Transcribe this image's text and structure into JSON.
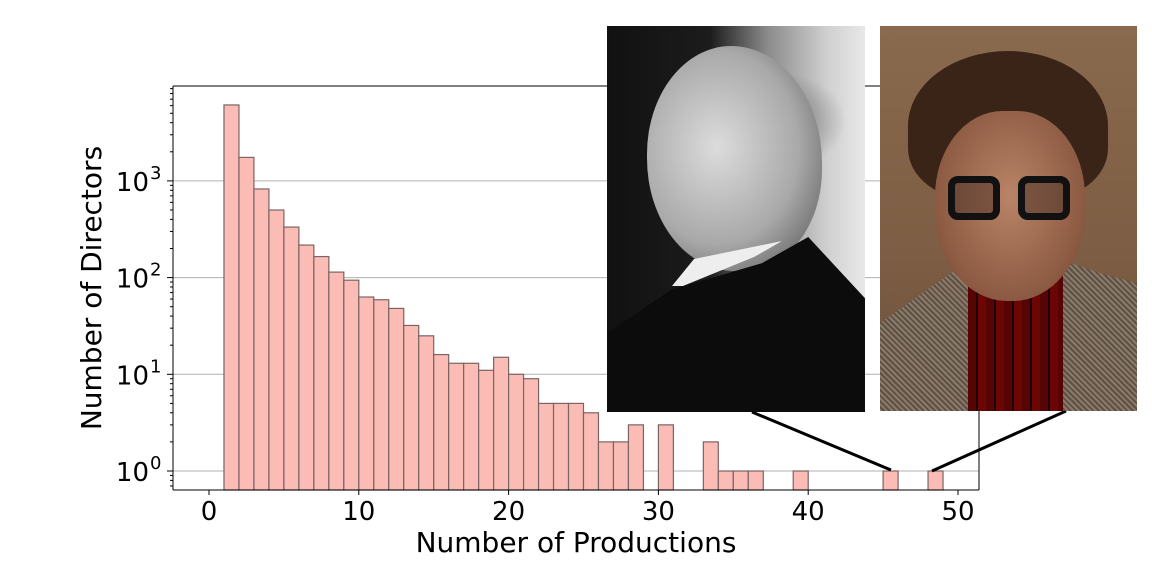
{
  "chart_data": {
    "type": "bar",
    "subtype": "histogram",
    "title": "",
    "xlabel": "Number of Productions",
    "ylabel": "Number of Directors",
    "yscale": "log",
    "xlim": [
      -2.5,
      51.5
    ],
    "ylim": [
      0.64,
      9500
    ],
    "xticks": [
      0,
      10,
      20,
      30,
      40,
      50
    ],
    "yticks": [
      "10^0",
      "10^1",
      "10^2",
      "10^3"
    ],
    "grid": {
      "y": true,
      "x": false
    },
    "bin_width": 1,
    "fill_color": "#fbbcb6",
    "edge_color": "#7a6464",
    "bins": [
      {
        "x0": 1,
        "x1": 2,
        "count": 6100
      },
      {
        "x0": 2,
        "x1": 3,
        "count": 1750
      },
      {
        "x0": 3,
        "x1": 4,
        "count": 825
      },
      {
        "x0": 4,
        "x1": 5,
        "count": 500
      },
      {
        "x0": 5,
        "x1": 6,
        "count": 333
      },
      {
        "x0": 6,
        "x1": 7,
        "count": 217
      },
      {
        "x0": 7,
        "x1": 8,
        "count": 165
      },
      {
        "x0": 8,
        "x1": 9,
        "count": 114
      },
      {
        "x0": 9,
        "x1": 10,
        "count": 94
      },
      {
        "x0": 10,
        "x1": 11,
        "count": 63
      },
      {
        "x0": 11,
        "x1": 12,
        "count": 59
      },
      {
        "x0": 12,
        "x1": 13,
        "count": 48
      },
      {
        "x0": 13,
        "x1": 14,
        "count": 32
      },
      {
        "x0": 14,
        "x1": 15,
        "count": 25
      },
      {
        "x0": 15,
        "x1": 16,
        "count": 16
      },
      {
        "x0": 16,
        "x1": 17,
        "count": 13
      },
      {
        "x0": 17,
        "x1": 18,
        "count": 13
      },
      {
        "x0": 18,
        "x1": 19,
        "count": 11
      },
      {
        "x0": 19,
        "x1": 20,
        "count": 15
      },
      {
        "x0": 20,
        "x1": 21,
        "count": 10
      },
      {
        "x0": 21,
        "x1": 22,
        "count": 9
      },
      {
        "x0": 22,
        "x1": 23,
        "count": 5
      },
      {
        "x0": 23,
        "x1": 24,
        "count": 5
      },
      {
        "x0": 24,
        "x1": 25,
        "count": 5
      },
      {
        "x0": 25,
        "x1": 26,
        "count": 4
      },
      {
        "x0": 26,
        "x1": 27,
        "count": 2
      },
      {
        "x0": 27,
        "x1": 28,
        "count": 2
      },
      {
        "x0": 28,
        "x1": 29,
        "count": 3
      },
      {
        "x0": 30,
        "x1": 31,
        "count": 3
      },
      {
        "x0": 33,
        "x1": 34,
        "count": 2
      },
      {
        "x0": 34,
        "x1": 35,
        "count": 1
      },
      {
        "x0": 35,
        "x1": 36,
        "count": 1
      },
      {
        "x0": 36,
        "x1": 37,
        "count": 1
      },
      {
        "x0": 39,
        "x1": 40,
        "count": 1
      },
      {
        "x0": 45,
        "x1": 46,
        "count": 1
      },
      {
        "x0": 48,
        "x1": 49,
        "count": 1
      }
    ],
    "annotations": [
      {
        "type": "photo",
        "description": "black-and-white portrait of a director",
        "points_to_bin": [
          45,
          46
        ]
      },
      {
        "type": "photo",
        "description": "color portrait of a director with glasses",
        "points_to_bin": [
          48,
          49
        ]
      }
    ]
  },
  "axes": {
    "xlabel": "Number of Productions",
    "ylabel": "Number of Directors",
    "xtick_labels": [
      "0",
      "10",
      "20",
      "30",
      "40",
      "50"
    ],
    "ytick_labels": [
      {
        "base": "10",
        "exp": "0"
      },
      {
        "base": "10",
        "exp": "1"
      },
      {
        "base": "10",
        "exp": "2"
      },
      {
        "base": "10",
        "exp": "3"
      }
    ]
  },
  "photos": [
    {
      "id": "photo-left",
      "label": "portrait-bw"
    },
    {
      "id": "photo-right",
      "label": "portrait-color"
    }
  ]
}
